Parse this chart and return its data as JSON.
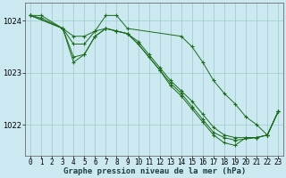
{
  "xlabel": "Graphe pression niveau de la mer (hPa)",
  "background_color": "#cce8f0",
  "grid_color": "#99cccc",
  "line_color": "#1a6b1a",
  "marker_color": "#1a6b1a",
  "xlim": [
    -0.5,
    23.5
  ],
  "ylim": [
    1021.4,
    1024.35
  ],
  "yticks": [
    1022,
    1023,
    1024
  ],
  "xticks": [
    0,
    1,
    2,
    3,
    4,
    5,
    6,
    7,
    8,
    9,
    10,
    11,
    12,
    13,
    14,
    15,
    16,
    17,
    18,
    19,
    20,
    21,
    22,
    23
  ],
  "series": [
    {
      "x": [
        0,
        1,
        3,
        4,
        5,
        6,
        7,
        8,
        9,
        14,
        15,
        16,
        17,
        18,
        19,
        20,
        21,
        22,
        23
      ],
      "y": [
        1024.1,
        1024.1,
        1023.85,
        1023.55,
        1023.55,
        1023.8,
        1024.1,
        1024.1,
        1023.85,
        1023.7,
        1023.5,
        1023.2,
        1022.85,
        1022.6,
        1022.4,
        1022.15,
        1022.0,
        1021.8,
        1022.25
      ]
    },
    {
      "x": [
        0,
        1,
        3,
        4,
        5,
        6,
        7,
        8,
        9,
        10,
        11,
        12,
        13,
        14,
        15,
        16,
        17,
        18,
        19,
        20,
        21,
        22,
        23
      ],
      "y": [
        1024.1,
        1024.05,
        1023.85,
        1023.7,
        1023.7,
        1023.8,
        1023.85,
        1023.8,
        1023.75,
        1023.6,
        1023.35,
        1023.1,
        1022.85,
        1022.65,
        1022.45,
        1022.2,
        1021.95,
        1021.8,
        1021.75,
        1021.75,
        1021.75,
        1021.8,
        1022.25
      ]
    },
    {
      "x": [
        0,
        3,
        4,
        5,
        6,
        7,
        8,
        9,
        10,
        11,
        12,
        13,
        14,
        15,
        16,
        17,
        18,
        19,
        21,
        22,
        23
      ],
      "y": [
        1024.1,
        1023.85,
        1023.3,
        1023.35,
        1023.7,
        1023.85,
        1023.8,
        1023.75,
        1023.55,
        1023.3,
        1023.05,
        1022.8,
        1022.6,
        1022.35,
        1022.1,
        1021.85,
        1021.75,
        1021.7,
        1021.75,
        1021.8,
        1022.25
      ]
    },
    {
      "x": [
        0,
        3,
        4,
        5,
        6,
        7,
        8,
        9,
        10,
        12,
        13,
        14,
        15,
        16,
        17,
        18,
        19,
        20,
        21,
        22,
        23
      ],
      "y": [
        1024.1,
        1023.85,
        1023.2,
        1023.35,
        1023.7,
        1023.85,
        1023.8,
        1023.75,
        1023.55,
        1023.05,
        1022.75,
        1022.55,
        1022.3,
        1022.05,
        1021.8,
        1021.65,
        1021.6,
        1021.75,
        1021.75,
        1021.8,
        1022.25
      ]
    }
  ]
}
